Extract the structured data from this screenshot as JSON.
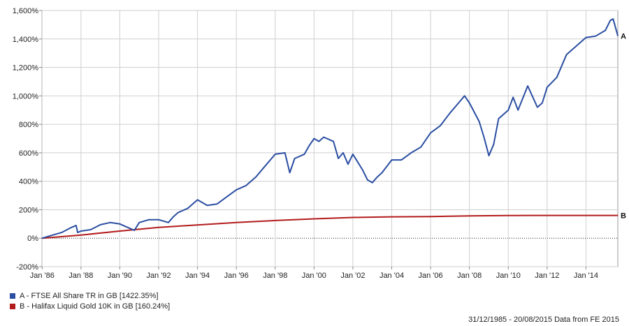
{
  "chart_data": {
    "type": "line",
    "title": "",
    "xlabel": "",
    "ylabel": "",
    "ylim": [
      -200,
      1600
    ],
    "y_ticks": [
      -200,
      0,
      200,
      400,
      600,
      800,
      1000,
      1200,
      1400,
      1600
    ],
    "y_tick_labels": [
      "-200%",
      "0%",
      "200%",
      "400%",
      "600%",
      "800%",
      "1,000%",
      "1,200%",
      "1,400%",
      "1,600%"
    ],
    "x_range": [
      1985.99,
      2015.64
    ],
    "x_ticks": [
      1986,
      1988,
      1990,
      1992,
      1994,
      1996,
      1998,
      2000,
      2002,
      2004,
      2006,
      2008,
      2010,
      2012,
      2014
    ],
    "x_tick_labels": [
      "Jan '86",
      "Jan '88",
      "Jan '90",
      "Jan '92",
      "Jan '94",
      "Jan '96",
      "Jan '98",
      "Jan '00",
      "Jan '02",
      "Jan '04",
      "Jan '06",
      "Jan '08",
      "Jan '10",
      "Jan '12",
      "Jan '14"
    ],
    "grid": true,
    "zero_line": "dotted",
    "legend_position": "bottom-left",
    "series": [
      {
        "name": "A - FTSE All Share TR in GB [1422.35%]",
        "end_label": "A",
        "color": "#2b4ea2",
        "x": [
          1986.0,
          1986.5,
          1987.0,
          1987.5,
          1987.75,
          1987.83,
          1988.0,
          1988.5,
          1989.0,
          1989.5,
          1990.0,
          1990.5,
          1990.75,
          1991.0,
          1991.5,
          1992.0,
          1992.5,
          1992.75,
          1993.0,
          1993.5,
          1994.0,
          1994.25,
          1994.5,
          1995.0,
          1995.5,
          1996.0,
          1996.5,
          1997.0,
          1997.5,
          1998.0,
          1998.5,
          1998.75,
          1999.0,
          1999.5,
          1999.75,
          2000.0,
          2000.25,
          2000.5,
          2001.0,
          2001.25,
          2001.5,
          2001.75,
          2002.0,
          2002.5,
          2002.75,
          2003.0,
          2003.25,
          2003.5,
          2004.0,
          2004.5,
          2005.0,
          2005.5,
          2006.0,
          2006.5,
          2007.0,
          2007.5,
          2007.75,
          2008.0,
          2008.5,
          2008.75,
          2009.0,
          2009.25,
          2009.5,
          2010.0,
          2010.25,
          2010.5,
          2011.0,
          2011.5,
          2011.75,
          2012.0,
          2012.5,
          2013.0,
          2013.5,
          2014.0,
          2014.5,
          2015.0,
          2015.25,
          2015.4,
          2015.64
        ],
        "values": [
          0,
          20,
          40,
          75,
          90,
          40,
          50,
          60,
          95,
          110,
          100,
          70,
          55,
          110,
          130,
          130,
          110,
          150,
          180,
          210,
          270,
          250,
          230,
          240,
          290,
          340,
          370,
          430,
          510,
          590,
          600,
          460,
          560,
          590,
          650,
          700,
          680,
          710,
          680,
          560,
          600,
          520,
          590,
          480,
          410,
          390,
          430,
          460,
          550,
          550,
          600,
          640,
          740,
          790,
          880,
          960,
          1000,
          950,
          820,
          710,
          580,
          660,
          840,
          900,
          990,
          900,
          1070,
          920,
          950,
          1060,
          1130,
          1290,
          1350,
          1410,
          1420,
          1460,
          1530,
          1540,
          1422
        ]
      },
      {
        "name": "B - Halifax Liquid Gold 10K in GB [160.24%]",
        "end_label": "B",
        "color": "#b31b1b",
        "x": [
          1986.0,
          1988.0,
          1990.0,
          1992.0,
          1994.0,
          1996.0,
          1998.0,
          2000.0,
          2002.0,
          2004.0,
          2006.0,
          2008.0,
          2010.0,
          2012.0,
          2014.0,
          2015.64
        ],
        "values": [
          0,
          22,
          50,
          76,
          93,
          110,
          124,
          136,
          146,
          150,
          152,
          157,
          159,
          160,
          160,
          160.24
        ]
      }
    ]
  },
  "footer": "31/12/1985 - 20/08/2015 Data from FE 2015"
}
